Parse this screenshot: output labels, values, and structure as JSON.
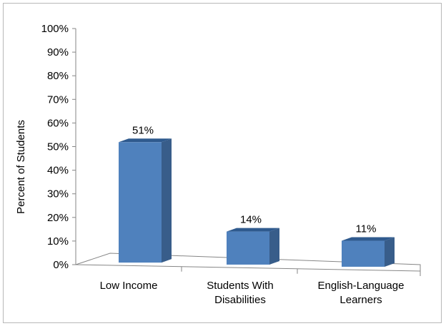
{
  "chart_data": {
    "type": "bar",
    "categories": [
      [
        "Low Income"
      ],
      [
        "Students With",
        "Disabilities"
      ],
      [
        "English-Language",
        "Learners"
      ]
    ],
    "values": [
      51,
      14,
      11
    ],
    "value_labels": [
      "51%",
      "14%",
      "11%"
    ],
    "title": "",
    "xlabel": "",
    "ylabel": "Percent of Students",
    "ylim": [
      0,
      100
    ],
    "y_ticks": [
      "0%",
      "10%",
      "20%",
      "30%",
      "40%",
      "50%",
      "60%",
      "70%",
      "80%",
      "90%",
      "100%"
    ],
    "grid": false,
    "legend": "none",
    "style": "3d-column",
    "colors": {
      "bar_front": "#4f81bd",
      "bar_side": "#385d8a",
      "bar_top": "#2f5a8e",
      "axis": "#868686"
    }
  }
}
